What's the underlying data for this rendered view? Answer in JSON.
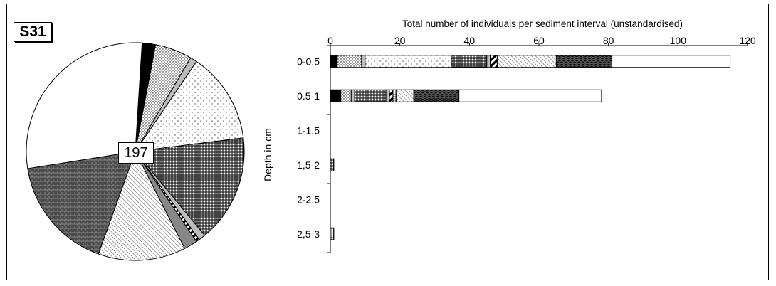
{
  "chart_data": [
    {
      "type": "pie",
      "station": "S31",
      "total_label": "197",
      "slice_fractions": [
        0.03,
        0.055,
        0.01,
        0.135,
        0.16,
        0.01,
        0.005,
        0.02,
        0.13,
        0.17,
        0.285
      ]
    },
    {
      "type": "bar",
      "orientation": "horizontal",
      "stacked": true,
      "title": "Total number of individuals per sediment interval (unstandardised)",
      "ylabel": "Depth in cm",
      "categories": [
        "0-0.5",
        "0.5-1",
        "1-1,5",
        "1,5-2",
        "2-2,5",
        "2,5-3"
      ],
      "xlim": [
        0,
        120
      ],
      "xticks": [
        "0",
        "20",
        "40",
        "60",
        "80",
        "100",
        "120"
      ],
      "xtick_values": [
        0,
        20,
        40,
        60,
        80,
        100,
        120
      ],
      "segments": [
        {
          "pattern": "solid-black",
          "values": [
            2,
            3,
            0,
            0,
            0,
            0
          ]
        },
        {
          "pattern": "dots-dense",
          "values": [
            7,
            3,
            0,
            0,
            0,
            0
          ]
        },
        {
          "pattern": "solid-grey",
          "values": [
            1,
            1,
            0,
            0,
            0,
            0
          ]
        },
        {
          "pattern": "dots-sparse",
          "values": [
            25,
            0,
            0,
            0,
            0,
            0
          ]
        },
        {
          "pattern": "grid",
          "values": [
            10,
            9,
            0,
            1,
            0,
            0
          ]
        },
        {
          "pattern": "solid-grey",
          "values": [
            1,
            1,
            0,
            0,
            0,
            0
          ]
        },
        {
          "pattern": "diagonal-bold",
          "values": [
            2,
            1,
            0,
            0,
            0,
            0
          ]
        },
        {
          "pattern": "grid-fine",
          "values": [
            0,
            1,
            0,
            0,
            0,
            1
          ]
        },
        {
          "pattern": "diagonal-fine",
          "values": [
            17,
            5,
            0,
            0,
            0,
            0
          ]
        },
        {
          "pattern": "zigzag-dark",
          "values": [
            16,
            13,
            0,
            0,
            0,
            0
          ]
        },
        {
          "pattern": "white",
          "values": [
            34,
            41,
            0,
            0,
            0,
            0
          ]
        }
      ]
    }
  ]
}
